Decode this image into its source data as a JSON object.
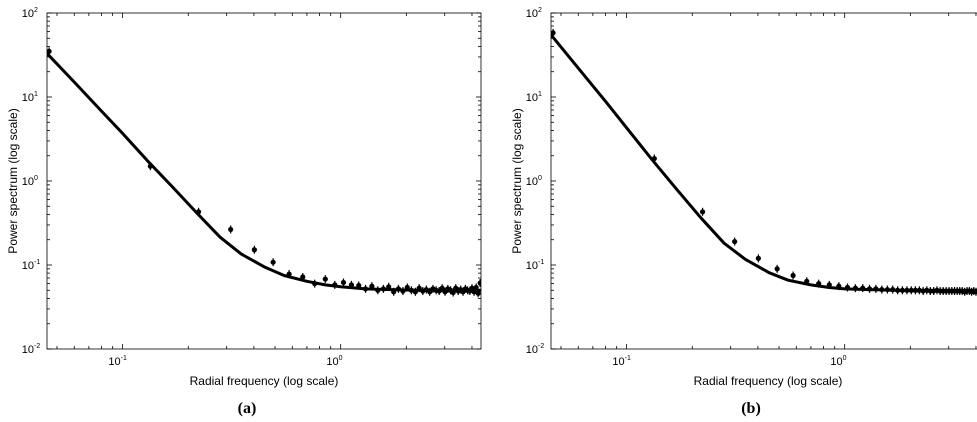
{
  "chart_data": [
    {
      "type": "scatter",
      "panel_label": "(a)",
      "xlabel": "Radial frequency (log scale)",
      "ylabel": "Power spectrum (log scale)",
      "xscale": "log",
      "yscale": "log",
      "xlim": [
        0.045,
        4.4
      ],
      "ylim": [
        0.01,
        100
      ],
      "xticks": [
        {
          "base": "10",
          "exp": "-1",
          "value": 0.1
        },
        {
          "base": "10",
          "exp": "0",
          "value": 1
        }
      ],
      "yticks": [
        {
          "base": "10",
          "exp": "-2",
          "value": 0.01
        },
        {
          "base": "10",
          "exp": "-1",
          "value": 0.1
        },
        {
          "base": "10",
          "exp": "0",
          "value": 1
        },
        {
          "base": "10",
          "exp": "1",
          "value": 10
        },
        {
          "base": "10",
          "exp": "2",
          "value": 100
        }
      ],
      "series": [
        {
          "kind": "points",
          "x": [
            0.046,
            0.134,
            0.223,
            0.313,
            0.402,
            0.49,
            0.58,
            0.67,
            0.76,
            0.85,
            0.94,
            1.03,
            1.12,
            1.21,
            1.3,
            1.39,
            1.48,
            1.57,
            1.66,
            1.75,
            1.84,
            1.93,
            2.02,
            2.11,
            2.2,
            2.29,
            2.38,
            2.47,
            2.56,
            2.65,
            2.74,
            2.83,
            2.92,
            3.01,
            3.1,
            3.19,
            3.28,
            3.37,
            3.46,
            3.55,
            3.64,
            3.73,
            3.82,
            3.91,
            4.0,
            4.09,
            4.18,
            4.27,
            4.36
          ],
          "y": [
            35,
            1.5,
            0.43,
            0.265,
            0.152,
            0.108,
            0.078,
            0.072,
            0.06,
            0.068,
            0.058,
            0.062,
            0.058,
            0.057,
            0.052,
            0.056,
            0.05,
            0.052,
            0.055,
            0.048,
            0.052,
            0.049,
            0.054,
            0.05,
            0.048,
            0.053,
            0.049,
            0.051,
            0.048,
            0.052,
            0.05,
            0.049,
            0.053,
            0.048,
            0.052,
            0.05,
            0.047,
            0.053,
            0.049,
            0.051,
            0.048,
            0.052,
            0.05,
            0.049,
            0.053,
            0.048,
            0.054,
            0.046,
            0.061
          ]
        },
        {
          "kind": "fit",
          "x": [
            0.045,
            0.06,
            0.08,
            0.1,
            0.13,
            0.17,
            0.22,
            0.28,
            0.35,
            0.45,
            0.55,
            0.7,
            0.85,
            1.0,
            1.3,
            1.7,
            2.2,
            3.0,
            4.4
          ],
          "y": [
            33,
            15.1,
            6.8,
            3.69,
            1.74,
            0.84,
            0.41,
            0.214,
            0.135,
            0.094,
            0.075,
            0.064,
            0.058,
            0.055,
            0.052,
            0.051,
            0.05,
            0.05,
            0.05
          ]
        }
      ]
    },
    {
      "type": "scatter",
      "panel_label": "(b)",
      "xlabel": "Radial frequency (log scale)",
      "ylabel": "Power spectrum (log scale)",
      "xscale": "log",
      "yscale": "log",
      "xlim": [
        0.045,
        4.4
      ],
      "ylim": [
        0.01,
        100
      ],
      "xticks": [
        {
          "base": "10",
          "exp": "-1",
          "value": 0.1
        },
        {
          "base": "10",
          "exp": "0",
          "value": 1
        }
      ],
      "yticks": [
        {
          "base": "10",
          "exp": "-2",
          "value": 0.01
        },
        {
          "base": "10",
          "exp": "-1",
          "value": 0.1
        },
        {
          "base": "10",
          "exp": "0",
          "value": 1
        },
        {
          "base": "10",
          "exp": "1",
          "value": 10
        },
        {
          "base": "10",
          "exp": "2",
          "value": 100
        }
      ],
      "series": [
        {
          "kind": "points",
          "x": [
            0.046,
            0.134,
            0.223,
            0.313,
            0.402,
            0.49,
            0.58,
            0.67,
            0.76,
            0.85,
            0.94,
            1.03,
            1.12,
            1.21,
            1.3,
            1.39,
            1.48,
            1.57,
            1.66,
            1.75,
            1.84,
            1.93,
            2.02,
            2.11,
            2.2,
            2.29,
            2.38,
            2.47,
            2.56,
            2.65,
            2.74,
            2.83,
            2.92,
            3.01,
            3.1,
            3.19,
            3.28,
            3.37,
            3.46,
            3.55,
            3.64,
            3.73,
            3.82,
            3.91,
            4.0,
            4.09,
            4.18,
            4.27,
            4.36
          ],
          "y": [
            58,
            1.85,
            0.43,
            0.19,
            0.12,
            0.09,
            0.075,
            0.064,
            0.06,
            0.058,
            0.056,
            0.054,
            0.053,
            0.053,
            0.052,
            0.052,
            0.051,
            0.051,
            0.051,
            0.05,
            0.05,
            0.05,
            0.05,
            0.05,
            0.05,
            0.049,
            0.05,
            0.049,
            0.049,
            0.05,
            0.049,
            0.049,
            0.049,
            0.049,
            0.049,
            0.049,
            0.049,
            0.049,
            0.049,
            0.048,
            0.049,
            0.049,
            0.048,
            0.049,
            0.048,
            0.049,
            0.048,
            0.048,
            0.048
          ]
        },
        {
          "kind": "fit",
          "x": [
            0.045,
            0.06,
            0.08,
            0.1,
            0.13,
            0.17,
            0.22,
            0.28,
            0.35,
            0.45,
            0.55,
            0.7,
            0.85,
            1.0,
            1.3,
            1.7,
            2.2,
            3.0,
            4.4
          ],
          "y": [
            55,
            22.1,
            8.9,
            4.3,
            1.83,
            0.79,
            0.36,
            0.182,
            0.117,
            0.081,
            0.066,
            0.058,
            0.054,
            0.052,
            0.051,
            0.05,
            0.049,
            0.049,
            0.048
          ]
        }
      ]
    }
  ]
}
